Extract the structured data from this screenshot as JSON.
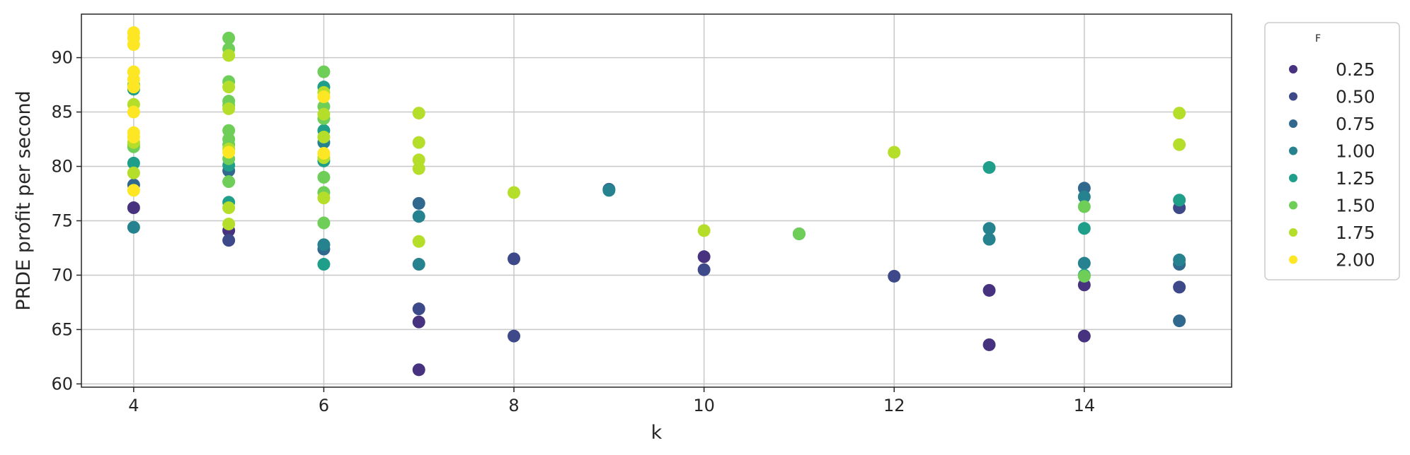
{
  "chart_data": {
    "type": "scatter",
    "title": "",
    "xlabel": "k",
    "ylabel": "PRDE profit per second",
    "xlim": [
      3.45,
      15.55
    ],
    "ylim": [
      59.7,
      94.0
    ],
    "xticks": [
      4,
      6,
      8,
      10,
      12,
      14
    ],
    "yticks": [
      60,
      65,
      70,
      75,
      80,
      85,
      90
    ],
    "grid": true,
    "legend": {
      "title": "F",
      "placement": "outside-right",
      "entries": [
        {
          "label": "0.25",
          "color": "#46327e"
        },
        {
          "label": "0.50",
          "color": "#3e4989"
        },
        {
          "label": "0.75",
          "color": "#31688e"
        },
        {
          "label": "1.00",
          "color": "#26828e"
        },
        {
          "label": "1.25",
          "color": "#1f9e89"
        },
        {
          "label": "1.50",
          "color": "#6ece58"
        },
        {
          "label": "1.75",
          "color": "#b5de2b"
        },
        {
          "label": "2.00",
          "color": "#fde725"
        }
      ]
    },
    "series": [
      {
        "name": "0.25",
        "color": "#46327e",
        "points": [
          [
            4,
            76.2
          ],
          [
            5,
            74.1
          ],
          [
            7,
            65.7
          ],
          [
            7,
            61.3
          ],
          [
            10,
            71.7
          ],
          [
            13,
            68.6
          ],
          [
            13,
            63.6
          ],
          [
            14,
            69.1
          ],
          [
            14,
            64.4
          ]
        ]
      },
      {
        "name": "0.50",
        "color": "#3e4989",
        "points": [
          [
            5,
            73.2
          ],
          [
            7,
            66.9
          ],
          [
            8,
            71.5
          ],
          [
            8,
            64.4
          ],
          [
            10,
            70.5
          ],
          [
            12,
            69.9
          ],
          [
            15,
            76.2
          ],
          [
            15,
            68.9
          ]
        ]
      },
      {
        "name": "0.75",
        "color": "#31688e",
        "points": [
          [
            4,
            78.3
          ],
          [
            5,
            79.6
          ],
          [
            6,
            72.4
          ],
          [
            7,
            76.6
          ],
          [
            9,
            77.9
          ],
          [
            14,
            78.0
          ],
          [
            15,
            71.0
          ],
          [
            15,
            65.8
          ]
        ]
      },
      {
        "name": "1.00",
        "color": "#26828e",
        "points": [
          [
            4,
            74.4
          ],
          [
            6,
            72.8
          ],
          [
            6,
            82.2
          ],
          [
            7,
            75.4
          ],
          [
            7,
            71.0
          ],
          [
            9,
            77.8
          ],
          [
            11,
            73.8
          ],
          [
            13,
            74.3
          ],
          [
            13,
            73.3
          ],
          [
            14,
            77.2
          ],
          [
            14,
            71.1
          ],
          [
            15,
            71.4
          ]
        ]
      },
      {
        "name": "1.25",
        "color": "#1f9e89",
        "points": [
          [
            4,
            87.1
          ],
          [
            4,
            80.3
          ],
          [
            5,
            76.7
          ],
          [
            5,
            80.1
          ],
          [
            6,
            87.3
          ],
          [
            6,
            80.5
          ],
          [
            6,
            83.3
          ],
          [
            6,
            71.0
          ],
          [
            13,
            79.9
          ],
          [
            14,
            74.3
          ],
          [
            14,
            70.0
          ],
          [
            15,
            76.9
          ]
        ]
      },
      {
        "name": "1.50",
        "color": "#6ece58",
        "points": [
          [
            4,
            87.5
          ],
          [
            4,
            82.0
          ],
          [
            4,
            81.8
          ],
          [
            5,
            91.8
          ],
          [
            5,
            90.8
          ],
          [
            5,
            87.8
          ],
          [
            5,
            86.0
          ],
          [
            5,
            85.6
          ],
          [
            5,
            83.3
          ],
          [
            5,
            82.5
          ],
          [
            5,
            82.0
          ],
          [
            5,
            80.7
          ],
          [
            5,
            78.6
          ],
          [
            6,
            88.7
          ],
          [
            6,
            85.5
          ],
          [
            6,
            84.4
          ],
          [
            6,
            79.0
          ],
          [
            6,
            77.6
          ],
          [
            6,
            74.8
          ],
          [
            11,
            73.8
          ],
          [
            14,
            76.3
          ],
          [
            14,
            69.9
          ]
        ]
      },
      {
        "name": "1.75",
        "color": "#b5de2b",
        "points": [
          [
            4,
            85.7
          ],
          [
            4,
            82.2
          ],
          [
            4,
            79.4
          ],
          [
            5,
            90.2
          ],
          [
            5,
            87.3
          ],
          [
            5,
            85.3
          ],
          [
            5,
            81.6
          ],
          [
            5,
            76.2
          ],
          [
            5,
            74.7
          ],
          [
            6,
            86.8
          ],
          [
            6,
            84.8
          ],
          [
            6,
            82.7
          ],
          [
            6,
            80.8
          ],
          [
            6,
            77.1
          ],
          [
            7,
            84.9
          ],
          [
            7,
            82.2
          ],
          [
            7,
            80.6
          ],
          [
            7,
            79.8
          ],
          [
            7,
            73.1
          ],
          [
            8,
            77.6
          ],
          [
            10,
            74.1
          ],
          [
            12,
            81.3
          ],
          [
            15,
            84.9
          ],
          [
            15,
            82.0
          ]
        ]
      },
      {
        "name": "2.00",
        "color": "#fde725",
        "points": [
          [
            4,
            92.3
          ],
          [
            4,
            91.8
          ],
          [
            4,
            91.2
          ],
          [
            4,
            88.7
          ],
          [
            4,
            88.0
          ],
          [
            4,
            87.3
          ],
          [
            4,
            85.0
          ],
          [
            4,
            83.1
          ],
          [
            4,
            82.7
          ],
          [
            4,
            77.8
          ],
          [
            5,
            81.3
          ],
          [
            6,
            86.4
          ],
          [
            6,
            81.2
          ]
        ]
      }
    ]
  }
}
